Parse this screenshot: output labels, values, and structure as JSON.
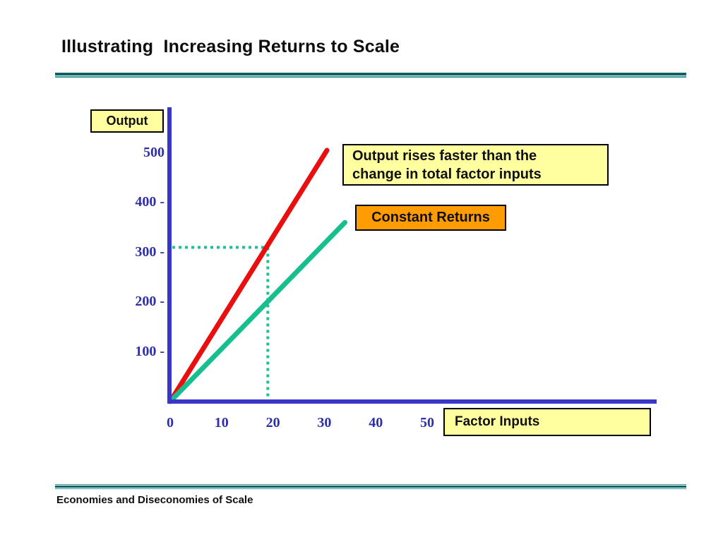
{
  "slide": {
    "title": "Illustrating  Increasing Returns to Scale",
    "footer": "Economies and Diseconomies of Scale"
  },
  "boxes": {
    "output_label": "Output",
    "factor_inputs_label": "Factor Inputs",
    "constant_returns_label": "Constant Returns",
    "annotation_line1": "Output rises faster than the",
    "annotation_line2": "change in total factor inputs"
  },
  "colors": {
    "axis_blue": "#3a36c8",
    "tick_text_blue": "#2f2fa8",
    "increasing_line_red": "#e90f0f",
    "constant_line_teal": "#17bf8e",
    "guide_dot_teal": "#1fc08f",
    "box_yellow": "#ffff9f",
    "box_orange": "#ff9c04",
    "rule_teal_dark": "#0f6163",
    "rule_teal_light": "#2f9598"
  },
  "chart_data": {
    "type": "line",
    "title": "Illustrating Increasing Returns to Scale",
    "xlabel": "Factor Inputs",
    "ylabel": "Output",
    "xlim": [
      0,
      95
    ],
    "ylim": [
      0,
      580
    ],
    "grid": false,
    "x_ticks": [
      {
        "label": "0",
        "value": 0
      },
      {
        "label": "10",
        "value": 10
      },
      {
        "label": "20",
        "value": 20
      },
      {
        "label": "30",
        "value": 30
      },
      {
        "label": "40",
        "value": 40
      },
      {
        "label": "50",
        "value": 50
      }
    ],
    "y_ticks": [
      {
        "label": "500",
        "value": 500
      },
      {
        "label": "400 -",
        "value": 400
      },
      {
        "label": "300 -",
        "value": 300
      },
      {
        "label": "200 -",
        "value": 200
      },
      {
        "label": "100 -",
        "value": 100
      }
    ],
    "series": [
      {
        "name": "Increasing returns to scale",
        "color": "#e90f0f",
        "points": [
          [
            0,
            0
          ],
          [
            30.5,
            505
          ]
        ]
      },
      {
        "name": "Constant Returns",
        "color": "#17bf8e",
        "points": [
          [
            0,
            0
          ],
          [
            34,
            360
          ]
        ]
      }
    ],
    "guides": {
      "style": "square-dotted",
      "color": "#1fc08f",
      "x": 19,
      "y": 310
    },
    "annotations": [
      "Output rises faster than the change in total factor inputs",
      "Constant Returns",
      "Factor Inputs",
      "Output"
    ]
  }
}
